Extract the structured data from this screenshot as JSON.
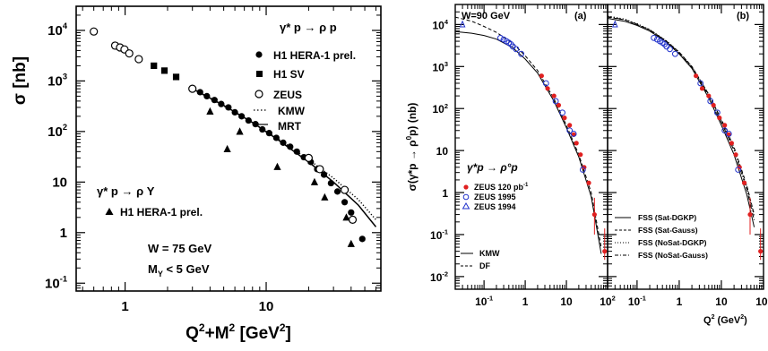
{
  "chart_data": [
    {
      "type": "scatter",
      "title": "",
      "x_scale": "log",
      "y_scale": "log",
      "xlim": [
        0.45,
        65
      ],
      "ylim": [
        0.07,
        30000
      ],
      "xlabel_main": "Q",
      "xlabel_sup1": "2",
      "xlabel_mid": "+M",
      "xlabel_sup2": "2",
      "xlabel_end": " [GeV",
      "xlabel_sup3": "2",
      "xlabel_close": "]",
      "ylabel": "σ [nb]",
      "x_ticks": [
        {
          "v": 1,
          "label": "1"
        },
        {
          "v": 10,
          "label": "10"
        }
      ],
      "y_ticks": [
        {
          "v": 0.1,
          "base": "10",
          "exp": "-1"
        },
        {
          "v": 1,
          "base": "1",
          "exp": ""
        },
        {
          "v": 10,
          "base": "10",
          "exp": ""
        },
        {
          "v": 100,
          "base": "10",
          "exp": "2"
        },
        {
          "v": 1000,
          "base": "10",
          "exp": "3"
        },
        {
          "v": 10000,
          "base": "10",
          "exp": "4"
        }
      ],
      "legend_top_title": "γ* p → ρ p",
      "legend_bottom_title": "γ* p → ρ Y",
      "info": [
        "W = 75 GeV",
        "M",
        "Y",
        " < 5 GeV"
      ],
      "series": [
        {
          "name": "H1 HERA-1 prel.",
          "marker": "filled-circle",
          "x": [
            3,
            3.4,
            3.8,
            4.3,
            4.8,
            5.4,
            6.0,
            6.7,
            7.5,
            8.4,
            9.4,
            10.5,
            11.8,
            13.2,
            14.8,
            16.5,
            18.5,
            20.7,
            23.0,
            25.7,
            28.8,
            32.0,
            36.0,
            40.0,
            48.0
          ],
          "y": [
            700,
            600,
            500,
            420,
            350,
            300,
            240,
            200,
            165,
            140,
            110,
            93,
            75,
            60,
            50,
            40,
            31,
            25,
            18,
            14,
            9.5,
            6.5,
            4.0,
            2.5,
            0.75
          ]
        },
        {
          "name": "H1 SV",
          "marker": "filled-square",
          "x": [
            1.6,
            1.9,
            2.3
          ],
          "y": [
            2000,
            1600,
            1200
          ]
        },
        {
          "name": "ZEUS",
          "marker": "open-circle",
          "x": [
            0.6,
            0.85,
            0.92,
            0.99,
            1.07,
            1.25,
            3.0,
            20.0,
            24.0,
            36.0,
            41.0
          ],
          "y": [
            9500,
            5000,
            4600,
            4200,
            3500,
            2700,
            700,
            30,
            18,
            7,
            1.8
          ]
        },
        {
          "name": "H1 HERA-1 prel.",
          "marker": "filled-triangle",
          "x": [
            4.0,
            5.3,
            6.5,
            12.0,
            22.0,
            26.0,
            37.0,
            40.0
          ],
          "y": [
            250,
            45,
            100,
            20,
            10,
            5,
            2.0,
            0.6
          ]
        },
        {
          "name": "KMW",
          "style": "dotted",
          "x": [
            3,
            5,
            8,
            12,
            20,
            30,
            45,
            60
          ],
          "y": [
            700,
            320,
            150,
            73,
            28,
            12,
            4.5,
            1.8
          ]
        },
        {
          "name": "MRT",
          "style": "solid",
          "x": [
            3,
            5,
            8,
            12,
            20,
            30,
            45,
            60
          ],
          "y": [
            700,
            330,
            150,
            70,
            25,
            10,
            3.5,
            1.3
          ]
        }
      ]
    },
    {
      "type": "scatter",
      "title": "",
      "x_scale": "log",
      "y_scale": "log",
      "xlim": [
        0.02,
        100
      ],
      "ylim": [
        0.005,
        30000
      ],
      "ylabel_pre": "σ(γ*p → ρ",
      "ylabel_sup": "0",
      "ylabel_post": "p) (nb)",
      "x_ticks": [
        {
          "v": 0.1,
          "base": "10",
          "exp": "-1"
        },
        {
          "v": 1,
          "base": "1",
          "exp": ""
        },
        {
          "v": 10,
          "base": "10",
          "exp": ""
        },
        {
          "v": 100,
          "base": "10",
          "exp": "2"
        }
      ],
      "y_ticks": [
        {
          "v": 0.01,
          "base": "10",
          "exp": "-2"
        },
        {
          "v": 0.1,
          "base": "10",
          "exp": "-1"
        },
        {
          "v": 1,
          "base": "1",
          "exp": ""
        },
        {
          "v": 10,
          "base": "10",
          "exp": ""
        },
        {
          "v": 100,
          "base": "10",
          "exp": "2"
        },
        {
          "v": 1000,
          "base": "10",
          "exp": "3"
        },
        {
          "v": 10000,
          "base": "10",
          "exp": "4"
        }
      ],
      "panel_label": "(a)",
      "w_label": "W=90 GeV",
      "process_label": "γ*p → ρ°p",
      "legend": [
        {
          "text": "ZEUS 120 pb",
          "sup": "-1",
          "marker": "red-filled-circle"
        },
        {
          "text": "ZEUS 1995",
          "sup": "",
          "marker": "blue-open-circle"
        },
        {
          "text": "ZEUS 1994",
          "sup": "",
          "marker": "blue-open-triangle"
        },
        {
          "text": "KMW",
          "sup": "",
          "marker": "solid-line"
        },
        {
          "text": "DF",
          "sup": "",
          "marker": "dashed-line"
        }
      ],
      "series": [
        {
          "name": "ZEUS 120 pb-1",
          "marker": "red-filled-circle",
          "x": [
            2.5,
            3.5,
            5,
            6.5,
            9,
            12,
            15,
            17.5,
            22,
            27,
            35,
            48,
            85
          ],
          "y": [
            600,
            300,
            200,
            120,
            60,
            40,
            24,
            15,
            8,
            4,
            1.7,
            0.3,
            0.04
          ],
          "err_low": [
            0,
            0,
            0,
            0,
            0,
            0,
            0,
            0,
            0,
            0,
            0,
            0.2,
            0.015
          ],
          "err_high": [
            0,
            0,
            0,
            0,
            0,
            0,
            0,
            0,
            0,
            0,
            0,
            0.45,
            0.1
          ]
        },
        {
          "name": "ZEUS 1995",
          "marker": "blue-open-circle",
          "x": [
            0.25,
            0.3,
            0.35,
            0.4,
            0.45,
            0.5,
            0.6,
            0.8,
            3.2,
            5.5,
            8,
            12,
            15,
            25
          ],
          "y": [
            4800,
            4400,
            4000,
            3700,
            3400,
            3000,
            2600,
            2000,
            400,
            150,
            80,
            30,
            25,
            3.5
          ]
        },
        {
          "name": "ZEUS 1994",
          "marker": "blue-open-triangle",
          "x": [
            0.03
          ],
          "y": [
            10000
          ]
        },
        {
          "name": "KMW",
          "style": "solid",
          "x": [
            0.02,
            0.05,
            0.1,
            0.2,
            0.5,
            1,
            2,
            5,
            10,
            20,
            40,
            70
          ],
          "y": [
            6800,
            6200,
            5500,
            4500,
            2800,
            1500,
            700,
            150,
            35,
            7,
            0.8,
            0.035
          ]
        },
        {
          "name": "DF",
          "style": "dashed",
          "x": [
            0.02,
            0.05,
            0.1,
            0.2,
            0.5,
            1,
            2,
            5,
            10,
            20,
            40,
            70
          ],
          "y": [
            15000,
            12000,
            9000,
            6500,
            3600,
            1800,
            800,
            170,
            40,
            8,
            1.0,
            0.05
          ]
        }
      ]
    },
    {
      "type": "scatter",
      "title": "",
      "x_scale": "log",
      "y_scale": "log",
      "xlim": [
        0.02,
        100
      ],
      "ylim": [
        0.005,
        30000
      ],
      "xlabel_pre": "Q",
      "xlabel_sup": "2",
      "xlabel_post": " (GeV",
      "xlabel_sup2": "2",
      "xlabel_close": ")",
      "x_ticks": [
        {
          "v": 0.1,
          "base": "10",
          "exp": "-1"
        },
        {
          "v": 1,
          "base": "1",
          "exp": ""
        },
        {
          "v": 10,
          "base": "10",
          "exp": ""
        },
        {
          "v": 100,
          "base": "10",
          "exp": "2"
        }
      ],
      "panel_label": "(b)",
      "legend": [
        {
          "text": "FSS (Sat-DGKP)",
          "style": "solid"
        },
        {
          "text": "FSS (Sat-Gauss)",
          "style": "dashed"
        },
        {
          "text": "FSS (NoSat-DGKP)",
          "style": "dotted"
        },
        {
          "text": "FSS (NoSat-Gauss)",
          "style": "dashdot"
        }
      ],
      "series": [
        {
          "name": "ZEUS 120 pb-1",
          "marker": "red-filled-circle",
          "x": [
            2.5,
            3.5,
            5,
            6.5,
            9,
            12,
            15,
            17.5,
            22,
            27,
            35,
            48,
            85
          ],
          "y": [
            600,
            300,
            200,
            120,
            60,
            40,
            24,
            15,
            8,
            4,
            1.7,
            0.3,
            0.04
          ],
          "err_low": [
            0,
            0,
            0,
            0,
            0,
            0,
            0,
            0,
            0,
            0,
            0,
            0.2,
            0.015
          ],
          "err_high": [
            0,
            0,
            0,
            0,
            0,
            0,
            0,
            0,
            0,
            0,
            0,
            0.45,
            0.1
          ]
        },
        {
          "name": "ZEUS 1995",
          "marker": "blue-open-circle",
          "x": [
            0.25,
            0.3,
            0.35,
            0.4,
            0.45,
            0.5,
            0.6,
            0.8,
            3.2,
            5.5,
            8,
            12,
            15,
            25
          ],
          "y": [
            4800,
            4400,
            4000,
            3700,
            3400,
            3000,
            2600,
            2000,
            400,
            150,
            80,
            30,
            25,
            3.5
          ]
        },
        {
          "name": "ZEUS 1994",
          "marker": "blue-open-triangle",
          "x": [
            0.03
          ],
          "y": [
            10000
          ]
        },
        {
          "name": "FSS (Sat-DGKP)",
          "style": "solid",
          "x": [
            0.02,
            0.05,
            0.1,
            0.2,
            0.5,
            1,
            2,
            5,
            10,
            20,
            40,
            60
          ],
          "y": [
            14000,
            12000,
            9500,
            7000,
            3800,
            2000,
            900,
            180,
            40,
            8,
            0.9,
            0.15
          ]
        },
        {
          "name": "FSS (Sat-Gauss)",
          "style": "dashed",
          "x": [
            0.02,
            0.05,
            0.1,
            0.2,
            0.5,
            1,
            2,
            5,
            10,
            20,
            40,
            60
          ],
          "y": [
            15000,
            13000,
            10000,
            7500,
            4000,
            2200,
            1000,
            220,
            55,
            12,
            1.5,
            0.3
          ]
        },
        {
          "name": "FSS (NoSat-DGKP)",
          "style": "dotted",
          "x": [
            0.02,
            0.05,
            0.1,
            0.2,
            0.5,
            1,
            2,
            5,
            10,
            20,
            40,
            60
          ],
          "y": [
            16000,
            13500,
            10500,
            7600,
            4100,
            2200,
            1000,
            220,
            52,
            11,
            1.4,
            0.28
          ]
        },
        {
          "name": "FSS (NoSat-Gauss)",
          "style": "dashdot",
          "x": [
            0.02,
            0.05,
            0.1,
            0.2,
            0.5,
            1,
            2,
            5,
            10,
            20,
            40,
            60
          ],
          "y": [
            15500,
            13000,
            10200,
            7400,
            4000,
            2100,
            950,
            200,
            47,
            10,
            1.2,
            0.22
          ]
        }
      ]
    }
  ]
}
